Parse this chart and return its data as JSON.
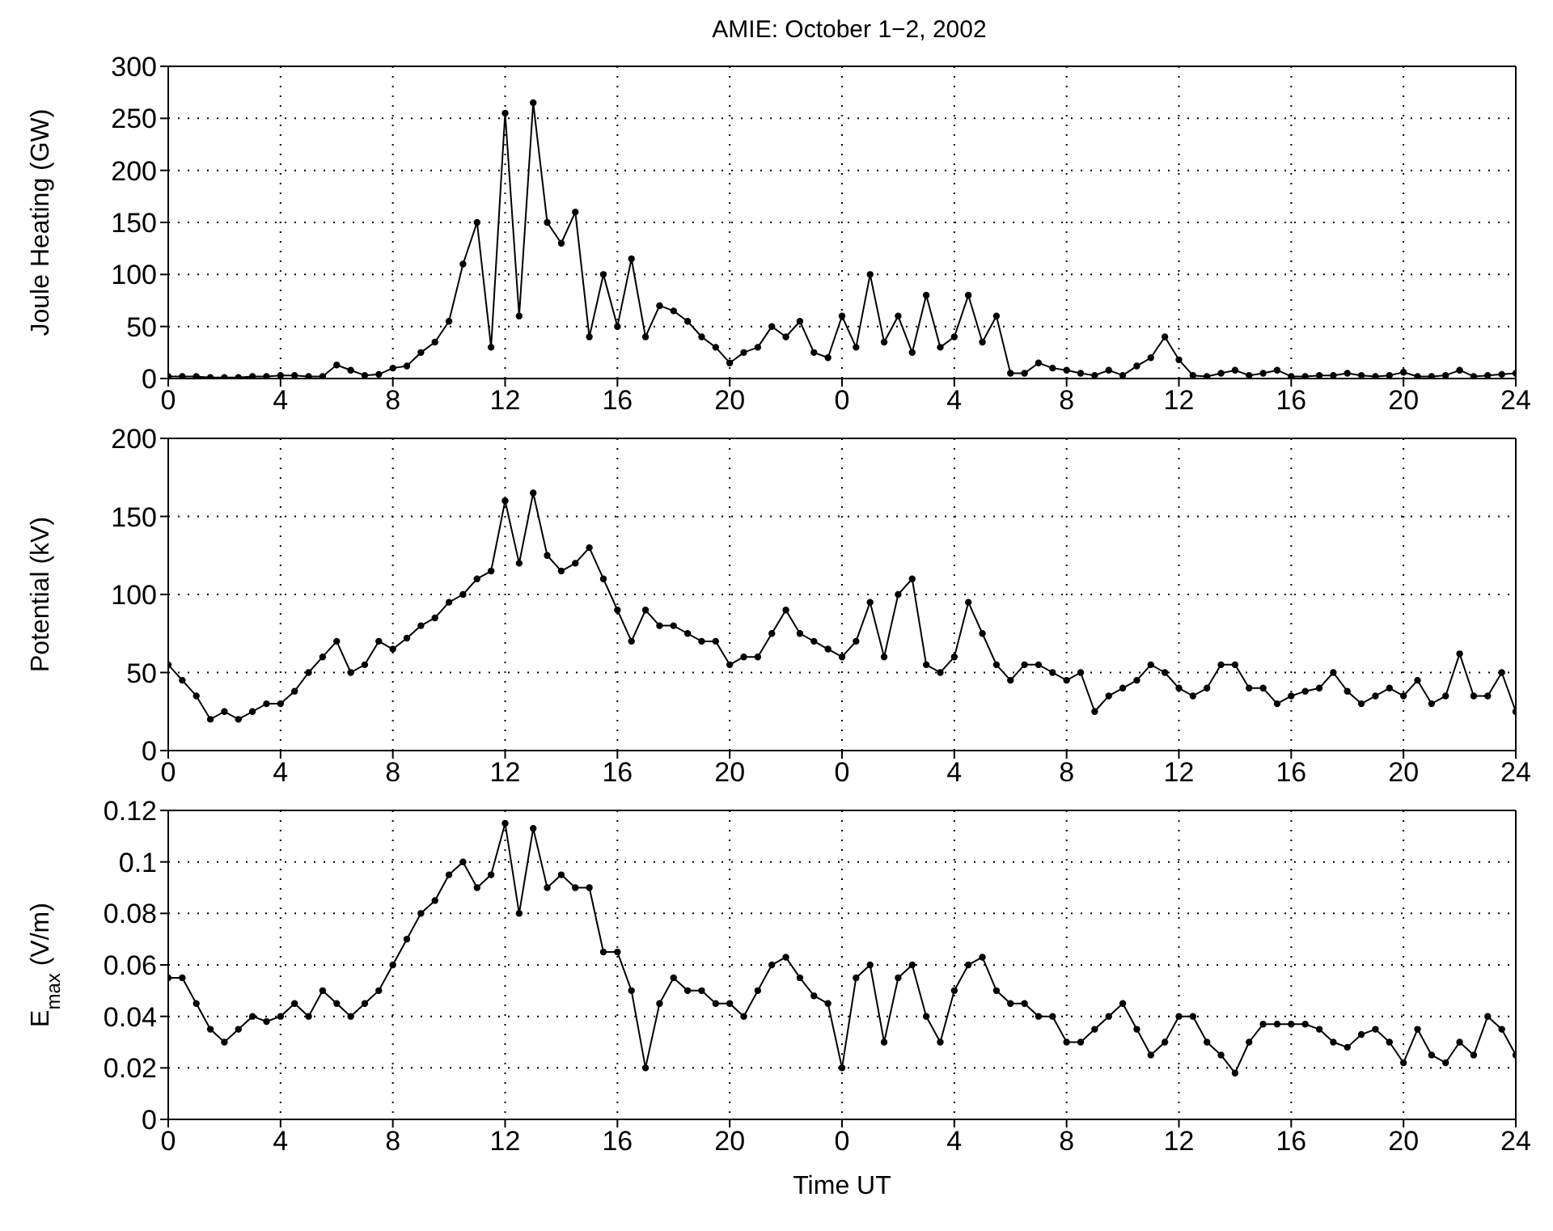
{
  "chart_data": [
    {
      "type": "line",
      "title": "AMIE: October 1−2, 2002",
      "ylabel": "Joule Heating (GW)",
      "color": "#000000",
      "marker": "circle",
      "line_style": "solid",
      "grid": true,
      "xlim": [
        "2002-10-01T00:00",
        "2002-10-03T00:00"
      ],
      "xticks": [
        {
          "value": "2002-10-01T00:00",
          "label": "0"
        },
        {
          "value": "2002-10-01T04:00",
          "label": "4"
        },
        {
          "value": "2002-10-01T08:00",
          "label": "8"
        },
        {
          "value": "2002-10-01T12:00",
          "label": "12"
        },
        {
          "value": "2002-10-01T16:00",
          "label": "16"
        },
        {
          "value": "2002-10-01T20:00",
          "label": "20"
        },
        {
          "value": "2002-10-02T00:00",
          "label": "0"
        },
        {
          "value": "2002-10-02T04:00",
          "label": "4"
        },
        {
          "value": "2002-10-02T08:00",
          "label": "8"
        },
        {
          "value": "2002-10-02T12:00",
          "label": "12"
        },
        {
          "value": "2002-10-02T16:00",
          "label": "16"
        },
        {
          "value": "2002-10-02T20:00",
          "label": "20"
        },
        {
          "value": "2002-10-03T00:00",
          "label": "24"
        }
      ],
      "ylim": [
        0,
        300
      ],
      "yticks": [
        0,
        50,
        100,
        150,
        200,
        250,
        300
      ],
      "x": [
        "2002-10-01T00:00",
        "2002-10-01T00:30",
        "2002-10-01T01:00",
        "2002-10-01T01:30",
        "2002-10-01T02:00",
        "2002-10-01T02:30",
        "2002-10-01T03:00",
        "2002-10-01T03:30",
        "2002-10-01T04:00",
        "2002-10-01T04:30",
        "2002-10-01T05:00",
        "2002-10-01T05:30",
        "2002-10-01T06:00",
        "2002-10-01T06:30",
        "2002-10-01T07:00",
        "2002-10-01T07:30",
        "2002-10-01T08:00",
        "2002-10-01T08:30",
        "2002-10-01T09:00",
        "2002-10-01T09:30",
        "2002-10-01T10:00",
        "2002-10-01T10:30",
        "2002-10-01T11:00",
        "2002-10-01T11:30",
        "2002-10-01T12:00",
        "2002-10-01T12:30",
        "2002-10-01T13:00",
        "2002-10-01T13:30",
        "2002-10-01T14:00",
        "2002-10-01T14:30",
        "2002-10-01T15:00",
        "2002-10-01T15:30",
        "2002-10-01T16:00",
        "2002-10-01T16:30",
        "2002-10-01T17:00",
        "2002-10-01T17:30",
        "2002-10-01T18:00",
        "2002-10-01T18:30",
        "2002-10-01T19:00",
        "2002-10-01T19:30",
        "2002-10-01T20:00",
        "2002-10-01T20:30",
        "2002-10-01T21:00",
        "2002-10-01T21:30",
        "2002-10-01T22:00",
        "2002-10-01T22:30",
        "2002-10-01T23:00",
        "2002-10-01T23:30",
        "2002-10-02T00:00",
        "2002-10-02T00:30",
        "2002-10-02T01:00",
        "2002-10-02T01:30",
        "2002-10-02T02:00",
        "2002-10-02T02:30",
        "2002-10-02T03:00",
        "2002-10-02T03:30",
        "2002-10-02T04:00",
        "2002-10-02T04:30",
        "2002-10-02T05:00",
        "2002-10-02T05:30",
        "2002-10-02T06:00",
        "2002-10-02T06:30",
        "2002-10-02T07:00",
        "2002-10-02T07:30",
        "2002-10-02T08:00",
        "2002-10-02T08:30",
        "2002-10-02T09:00",
        "2002-10-02T09:30",
        "2002-10-02T10:00",
        "2002-10-02T10:30",
        "2002-10-02T11:00",
        "2002-10-02T11:30",
        "2002-10-02T12:00",
        "2002-10-02T12:30",
        "2002-10-02T13:00",
        "2002-10-02T13:30",
        "2002-10-02T14:00",
        "2002-10-02T14:30",
        "2002-10-02T15:00",
        "2002-10-02T15:30",
        "2002-10-02T16:00",
        "2002-10-02T16:30",
        "2002-10-02T17:00",
        "2002-10-02T17:30",
        "2002-10-02T18:00",
        "2002-10-02T18:30",
        "2002-10-02T19:00",
        "2002-10-02T19:30",
        "2002-10-02T20:00",
        "2002-10-02T20:30",
        "2002-10-02T21:00",
        "2002-10-02T21:30",
        "2002-10-02T22:00",
        "2002-10-02T22:30",
        "2002-10-02T23:00",
        "2002-10-02T23:30",
        "2002-10-03T00:00"
      ],
      "values": [
        2,
        2,
        2,
        1,
        1,
        1,
        2,
        2,
        3,
        3,
        2,
        2,
        13,
        8,
        3,
        4,
        10,
        12,
        25,
        35,
        55,
        110,
        150,
        30,
        255,
        60,
        265,
        150,
        130,
        160,
        40,
        100,
        50,
        115,
        40,
        70,
        65,
        55,
        40,
        30,
        15,
        25,
        30,
        50,
        40,
        55,
        25,
        20,
        60,
        30,
        100,
        35,
        60,
        25,
        80,
        30,
        40,
        80,
        35,
        60,
        5,
        5,
        15,
        10,
        8,
        5,
        3,
        8,
        3,
        12,
        20,
        40,
        18,
        3,
        2,
        5,
        8,
        3,
        5,
        8,
        2,
        2,
        3,
        3,
        5,
        3,
        2,
        3,
        6,
        2,
        2,
        3,
        8,
        2,
        3,
        4,
        5
      ]
    },
    {
      "type": "line",
      "ylabel": "Potential (kV)",
      "color": "#000000",
      "marker": "circle",
      "line_style": "solid",
      "grid": true,
      "xlim": [
        "2002-10-01T00:00",
        "2002-10-03T00:00"
      ],
      "xticks": [
        {
          "value": "2002-10-01T00:00",
          "label": "0"
        },
        {
          "value": "2002-10-01T04:00",
          "label": "4"
        },
        {
          "value": "2002-10-01T08:00",
          "label": "8"
        },
        {
          "value": "2002-10-01T12:00",
          "label": "12"
        },
        {
          "value": "2002-10-01T16:00",
          "label": "16"
        },
        {
          "value": "2002-10-01T20:00",
          "label": "20"
        },
        {
          "value": "2002-10-02T00:00",
          "label": "0"
        },
        {
          "value": "2002-10-02T04:00",
          "label": "4"
        },
        {
          "value": "2002-10-02T08:00",
          "label": "8"
        },
        {
          "value": "2002-10-02T12:00",
          "label": "12"
        },
        {
          "value": "2002-10-02T16:00",
          "label": "16"
        },
        {
          "value": "2002-10-02T20:00",
          "label": "20"
        },
        {
          "value": "2002-10-03T00:00",
          "label": "24"
        }
      ],
      "ylim": [
        0,
        200
      ],
      "yticks": [
        0,
        50,
        100,
        150,
        200
      ],
      "x": [
        "2002-10-01T00:00",
        "2002-10-01T00:30",
        "2002-10-01T01:00",
        "2002-10-01T01:30",
        "2002-10-01T02:00",
        "2002-10-01T02:30",
        "2002-10-01T03:00",
        "2002-10-01T03:30",
        "2002-10-01T04:00",
        "2002-10-01T04:30",
        "2002-10-01T05:00",
        "2002-10-01T05:30",
        "2002-10-01T06:00",
        "2002-10-01T06:30",
        "2002-10-01T07:00",
        "2002-10-01T07:30",
        "2002-10-01T08:00",
        "2002-10-01T08:30",
        "2002-10-01T09:00",
        "2002-10-01T09:30",
        "2002-10-01T10:00",
        "2002-10-01T10:30",
        "2002-10-01T11:00",
        "2002-10-01T11:30",
        "2002-10-01T12:00",
        "2002-10-01T12:30",
        "2002-10-01T13:00",
        "2002-10-01T13:30",
        "2002-10-01T14:00",
        "2002-10-01T14:30",
        "2002-10-01T15:00",
        "2002-10-01T15:30",
        "2002-10-01T16:00",
        "2002-10-01T16:30",
        "2002-10-01T17:00",
        "2002-10-01T17:30",
        "2002-10-01T18:00",
        "2002-10-01T18:30",
        "2002-10-01T19:00",
        "2002-10-01T19:30",
        "2002-10-01T20:00",
        "2002-10-01T20:30",
        "2002-10-01T21:00",
        "2002-10-01T21:30",
        "2002-10-01T22:00",
        "2002-10-01T22:30",
        "2002-10-01T23:00",
        "2002-10-01T23:30",
        "2002-10-02T00:00",
        "2002-10-02T00:30",
        "2002-10-02T01:00",
        "2002-10-02T01:30",
        "2002-10-02T02:00",
        "2002-10-02T02:30",
        "2002-10-02T03:00",
        "2002-10-02T03:30",
        "2002-10-02T04:00",
        "2002-10-02T04:30",
        "2002-10-02T05:00",
        "2002-10-02T05:30",
        "2002-10-02T06:00",
        "2002-10-02T06:30",
        "2002-10-02T07:00",
        "2002-10-02T07:30",
        "2002-10-02T08:00",
        "2002-10-02T08:30",
        "2002-10-02T09:00",
        "2002-10-02T09:30",
        "2002-10-02T10:00",
        "2002-10-02T10:30",
        "2002-10-02T11:00",
        "2002-10-02T11:30",
        "2002-10-02T12:00",
        "2002-10-02T12:30",
        "2002-10-02T13:00",
        "2002-10-02T13:30",
        "2002-10-02T14:00",
        "2002-10-02T14:30",
        "2002-10-02T15:00",
        "2002-10-02T15:30",
        "2002-10-02T16:00",
        "2002-10-02T16:30",
        "2002-10-02T17:00",
        "2002-10-02T17:30",
        "2002-10-02T18:00",
        "2002-10-02T18:30",
        "2002-10-02T19:00",
        "2002-10-02T19:30",
        "2002-10-02T20:00",
        "2002-10-02T20:30",
        "2002-10-02T21:00",
        "2002-10-02T21:30",
        "2002-10-02T22:00",
        "2002-10-02T22:30",
        "2002-10-02T23:00",
        "2002-10-02T23:30",
        "2002-10-03T00:00"
      ],
      "values": [
        55,
        45,
        35,
        20,
        25,
        20,
        25,
        30,
        30,
        38,
        50,
        60,
        70,
        50,
        55,
        70,
        65,
        72,
        80,
        85,
        95,
        100,
        110,
        115,
        160,
        120,
        165,
        125,
        115,
        120,
        130,
        110,
        90,
        70,
        90,
        80,
        80,
        75,
        70,
        70,
        55,
        60,
        60,
        75,
        90,
        75,
        70,
        65,
        60,
        70,
        95,
        60,
        100,
        110,
        55,
        50,
        60,
        95,
        75,
        55,
        45,
        55,
        55,
        50,
        45,
        50,
        25,
        35,
        40,
        45,
        55,
        50,
        40,
        35,
        40,
        55,
        55,
        40,
        40,
        30,
        35,
        38,
        40,
        50,
        38,
        30,
        35,
        40,
        35,
        45,
        30,
        35,
        62,
        35,
        35,
        50,
        25
      ]
    },
    {
      "type": "line",
      "ylabel": "E$_{max}$ (V/m)",
      "xlabel": "Time UT",
      "color": "#000000",
      "marker": "circle",
      "line_style": "solid",
      "grid": true,
      "xlim": [
        "2002-10-01T00:00",
        "2002-10-03T00:00"
      ],
      "xticks": [
        {
          "value": "2002-10-01T00:00",
          "label": "0"
        },
        {
          "value": "2002-10-01T04:00",
          "label": "4"
        },
        {
          "value": "2002-10-01T08:00",
          "label": "8"
        },
        {
          "value": "2002-10-01T12:00",
          "label": "12"
        },
        {
          "value": "2002-10-01T16:00",
          "label": "16"
        },
        {
          "value": "2002-10-01T20:00",
          "label": "20"
        },
        {
          "value": "2002-10-02T00:00",
          "label": "0"
        },
        {
          "value": "2002-10-02T04:00",
          "label": "4"
        },
        {
          "value": "2002-10-02T08:00",
          "label": "8"
        },
        {
          "value": "2002-10-02T12:00",
          "label": "12"
        },
        {
          "value": "2002-10-02T16:00",
          "label": "16"
        },
        {
          "value": "2002-10-02T20:00",
          "label": "20"
        },
        {
          "value": "2002-10-03T00:00",
          "label": "24"
        }
      ],
      "ylim": [
        0,
        0.12
      ],
      "yticks": [
        0,
        0.02,
        0.04,
        0.06,
        0.08,
        0.1,
        0.12
      ],
      "x": [
        "2002-10-01T00:00",
        "2002-10-01T00:30",
        "2002-10-01T01:00",
        "2002-10-01T01:30",
        "2002-10-01T02:00",
        "2002-10-01T02:30",
        "2002-10-01T03:00",
        "2002-10-01T03:30",
        "2002-10-01T04:00",
        "2002-10-01T04:30",
        "2002-10-01T05:00",
        "2002-10-01T05:30",
        "2002-10-01T06:00",
        "2002-10-01T06:30",
        "2002-10-01T07:00",
        "2002-10-01T07:30",
        "2002-10-01T08:00",
        "2002-10-01T08:30",
        "2002-10-01T09:00",
        "2002-10-01T09:30",
        "2002-10-01T10:00",
        "2002-10-01T10:30",
        "2002-10-01T11:00",
        "2002-10-01T11:30",
        "2002-10-01T12:00",
        "2002-10-01T12:30",
        "2002-10-01T13:00",
        "2002-10-01T13:30",
        "2002-10-01T14:00",
        "2002-10-01T14:30",
        "2002-10-01T15:00",
        "2002-10-01T15:30",
        "2002-10-01T16:00",
        "2002-10-01T16:30",
        "2002-10-01T17:00",
        "2002-10-01T17:30",
        "2002-10-01T18:00",
        "2002-10-01T18:30",
        "2002-10-01T19:00",
        "2002-10-01T19:30",
        "2002-10-01T20:00",
        "2002-10-01T20:30",
        "2002-10-01T21:00",
        "2002-10-01T21:30",
        "2002-10-01T22:00",
        "2002-10-01T22:30",
        "2002-10-01T23:00",
        "2002-10-01T23:30",
        "2002-10-02T00:00",
        "2002-10-02T00:30",
        "2002-10-02T01:00",
        "2002-10-02T01:30",
        "2002-10-02T02:00",
        "2002-10-02T02:30",
        "2002-10-02T03:00",
        "2002-10-02T03:30",
        "2002-10-02T04:00",
        "2002-10-02T04:30",
        "2002-10-02T05:00",
        "2002-10-02T05:30",
        "2002-10-02T06:00",
        "2002-10-02T06:30",
        "2002-10-02T07:00",
        "2002-10-02T07:30",
        "2002-10-02T08:00",
        "2002-10-02T08:30",
        "2002-10-02T09:00",
        "2002-10-02T09:30",
        "2002-10-02T10:00",
        "2002-10-02T10:30",
        "2002-10-02T11:00",
        "2002-10-02T11:30",
        "2002-10-02T12:00",
        "2002-10-02T12:30",
        "2002-10-02T13:00",
        "2002-10-02T13:30",
        "2002-10-02T14:00",
        "2002-10-02T14:30",
        "2002-10-02T15:00",
        "2002-10-02T15:30",
        "2002-10-02T16:00",
        "2002-10-02T16:30",
        "2002-10-02T17:00",
        "2002-10-02T17:30",
        "2002-10-02T18:00",
        "2002-10-02T18:30",
        "2002-10-02T19:00",
        "2002-10-02T19:30",
        "2002-10-02T20:00",
        "2002-10-02T20:30",
        "2002-10-02T21:00",
        "2002-10-02T21:30",
        "2002-10-02T22:00",
        "2002-10-02T22:30",
        "2002-10-02T23:00",
        "2002-10-02T23:30",
        "2002-10-03T00:00"
      ],
      "values": [
        0.055,
        0.055,
        0.045,
        0.035,
        0.03,
        0.035,
        0.04,
        0.038,
        0.04,
        0.045,
        0.04,
        0.05,
        0.045,
        0.04,
        0.045,
        0.05,
        0.06,
        0.07,
        0.08,
        0.085,
        0.095,
        0.1,
        0.09,
        0.095,
        0.115,
        0.08,
        0.113,
        0.09,
        0.095,
        0.09,
        0.09,
        0.065,
        0.065,
        0.05,
        0.02,
        0.045,
        0.055,
        0.05,
        0.05,
        0.045,
        0.045,
        0.04,
        0.05,
        0.06,
        0.063,
        0.055,
        0.048,
        0.045,
        0.02,
        0.055,
        0.06,
        0.03,
        0.055,
        0.06,
        0.04,
        0.03,
        0.05,
        0.06,
        0.063,
        0.05,
        0.045,
        0.045,
        0.04,
        0.04,
        0.03,
        0.03,
        0.035,
        0.04,
        0.045,
        0.035,
        0.025,
        0.03,
        0.04,
        0.04,
        0.03,
        0.025,
        0.018,
        0.03,
        0.037,
        0.037,
        0.037,
        0.037,
        0.035,
        0.03,
        0.028,
        0.033,
        0.035,
        0.03,
        0.022,
        0.035,
        0.025,
        0.022,
        0.03,
        0.025,
        0.04,
        0.035,
        0.025
      ]
    }
  ]
}
